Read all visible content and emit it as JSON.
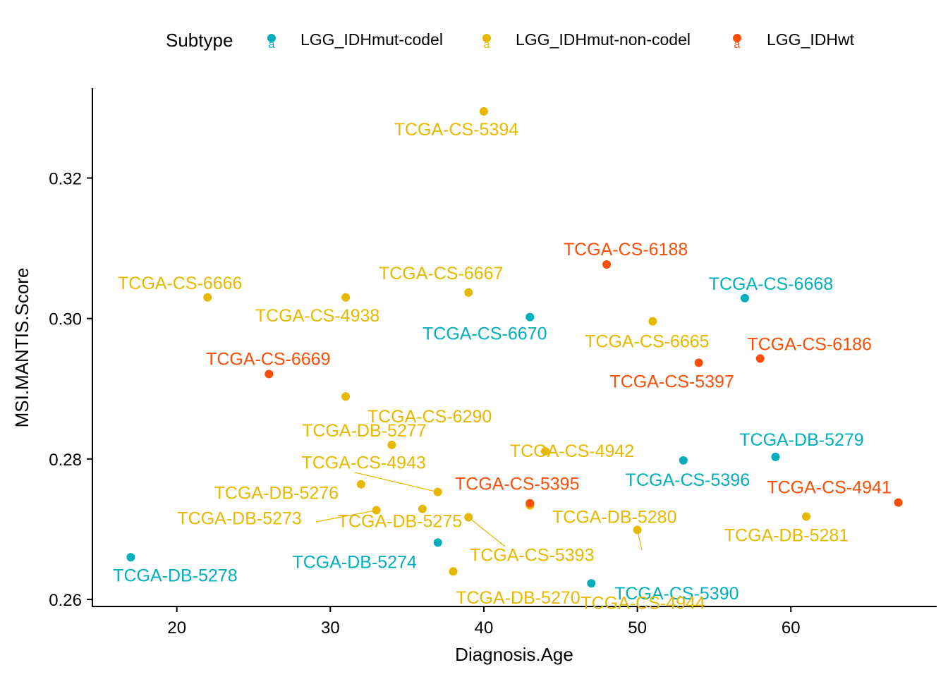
{
  "chart_data": {
    "type": "scatter",
    "title": "",
    "xlabel": "Diagnosis.Age",
    "ylabel": "MSI.MANTIS.Score",
    "xlim": [
      14.5,
      69.5
    ],
    "ylim": [
      0.259,
      0.3328
    ],
    "xticks": [
      20,
      30,
      40,
      50,
      60
    ],
    "yticks": [
      0.26,
      0.28,
      0.3,
      0.32
    ],
    "xtick_labels": [
      "20",
      "30",
      "40",
      "50",
      "60"
    ],
    "ytick_labels": [
      "0.26",
      "0.28",
      "0.30",
      "0.32"
    ],
    "legend": {
      "title": "Subtype",
      "placement": "top",
      "entries": [
        {
          "name": "LGG_IDHmut-codel",
          "color": "#00AFBB"
        },
        {
          "name": "LGG_IDHmut-non-codel",
          "color": "#E7B800"
        },
        {
          "name": "LGG_IDHwt",
          "color": "#FC4E07"
        }
      ]
    },
    "grid": false,
    "series": [
      {
        "name": "LGG_IDHmut-codel",
        "color": "#00AFBB",
        "points": [
          {
            "label": "TCGA-CS-6670",
            "x": 43,
            "y": 0.3002
          },
          {
            "label": "TCGA-CS-6668",
            "x": 57,
            "y": 0.3029
          },
          {
            "label": "TCGA-DB-5279",
            "x": 59,
            "y": 0.2803
          },
          {
            "label": "TCGA-CS-5396",
            "x": 53,
            "y": 0.2798
          },
          {
            "label": "TCGA-DB-5274",
            "x": 37,
            "y": 0.2681
          },
          {
            "label": "TCGA-DB-5278",
            "x": 17,
            "y": 0.266
          },
          {
            "label": "TCGA-CS-5390",
            "x": 47,
            "y": 0.2623
          }
        ]
      },
      {
        "name": "LGG_IDHmut-non-codel",
        "color": "#E7B800",
        "points": [
          {
            "label": "TCGA-CS-5394",
            "x": 40,
            "y": 0.3295
          },
          {
            "label": "TCGA-CS-6667",
            "x": 39,
            "y": 0.3037
          },
          {
            "label": "TCGA-CS-6666",
            "x": 22,
            "y": 0.303
          },
          {
            "label": "TCGA-CS-4938",
            "x": 31,
            "y": 0.303
          },
          {
            "label": "TCGA-CS-6665",
            "x": 51,
            "y": 0.2996
          },
          {
            "label": "TCGA-CS-6290",
            "x": 31,
            "y": 0.2889
          },
          {
            "label": "TCGA-DB-5277",
            "x": 34,
            "y": 0.282
          },
          {
            "label": "TCGA-CS-4942",
            "x": 44,
            "y": 0.2811
          },
          {
            "label": "TCGA-DB-5276",
            "x": 32,
            "y": 0.2764
          },
          {
            "label": "TCGA-CS-4943",
            "x": 37,
            "y": 0.2753
          },
          {
            "label": "TCGA-DB-5280",
            "x": 43,
            "y": 0.2734
          },
          {
            "label": "TCGA-DB-5273",
            "x": 33,
            "y": 0.2727
          },
          {
            "label": "TCGA-DB-5275",
            "x": 36,
            "y": 0.2729
          },
          {
            "label": "TCGA-CS-5393",
            "x": 39,
            "y": 0.2717
          },
          {
            "label": "TCGA-DB-5281",
            "x": 61,
            "y": 0.2718
          },
          {
            "label": "TCGA-CS-4944",
            "x": 50,
            "y": 0.2699
          },
          {
            "label": "TCGA-DB-5270",
            "x": 38,
            "y": 0.264
          }
        ]
      },
      {
        "name": "LGG_IDHwt",
        "color": "#FC4E07",
        "points": [
          {
            "label": "TCGA-CS-6188",
            "x": 48,
            "y": 0.3077
          },
          {
            "label": "TCGA-CS-6186",
            "x": 58,
            "y": 0.2943
          },
          {
            "label": "TCGA-CS-5397",
            "x": 54,
            "y": 0.2937
          },
          {
            "label": "TCGA-CS-6669",
            "x": 26,
            "y": 0.2921
          },
          {
            "label": "TCGA-CS-5395",
            "x": 43,
            "y": 0.2737
          },
          {
            "label": "TCGA-CS-4941",
            "x": 67,
            "y": 0.2738
          }
        ]
      }
    ]
  }
}
